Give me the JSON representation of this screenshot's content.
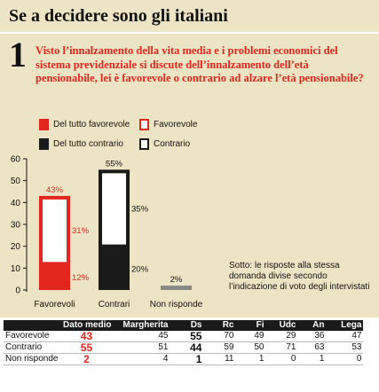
{
  "header": {
    "title": "Se a decidere sono gli italiani"
  },
  "question": {
    "number": "1",
    "text": "Visto l’innalzamento della vita media e i problemi economici del sistema previdenziale si discute dell’innalzamento dell’età pensionabile, lei è favorevole o contrario ad alzare l’età pensionabile?"
  },
  "legend": [
    {
      "label": "Del tutto favorevole",
      "color": "#e3261d",
      "style": "filled"
    },
    {
      "label": "Favorevole",
      "color": "#e3261d",
      "style": "outline"
    },
    {
      "label": "Del tutto contrario",
      "color": "#1a1a1a",
      "style": "filled"
    },
    {
      "label": "Contrario",
      "color": "#1a1a1a",
      "style": "outline"
    }
  ],
  "chart_data": {
    "type": "bar",
    "stacked": true,
    "categories": [
      "Favorevoli",
      "Contrari",
      "Non risponde"
    ],
    "totals": [
      "43%",
      "55%",
      "2%"
    ],
    "series": [
      {
        "name": "Del tutto favorevole",
        "values": [
          12,
          0,
          0
        ],
        "labels": [
          "12%",
          "",
          ""
        ],
        "color": "#e3261d"
      },
      {
        "name": "Favorevole",
        "values": [
          31,
          0,
          0
        ],
        "labels": [
          "31%",
          "",
          ""
        ],
        "color": "#e3261d"
      },
      {
        "name": "Del tutto contrario",
        "values": [
          0,
          20,
          0
        ],
        "labels": [
          "",
          "20%",
          ""
        ],
        "color": "#1a1a1a"
      },
      {
        "name": "Contrario",
        "values": [
          0,
          35,
          0
        ],
        "labels": [
          "",
          "35%",
          ""
        ],
        "color": "#1a1a1a"
      },
      {
        "values": [
          0,
          0,
          2
        ],
        "labels": [
          "",
          "",
          ""
        ],
        "color": "#888888"
      }
    ],
    "yticks": [
      "0",
      "10",
      "20",
      "30",
      "40",
      "50",
      "60"
    ],
    "ylim": [
      0,
      60
    ],
    "grid": false
  },
  "note": "Sotto: le risposte alla stessa domanda divise secondo l’indicazione di voto degli intervistati",
  "table": {
    "headers": [
      "",
      "Dato medio",
      "Margherita",
      "Ds",
      "Rc",
      "Fi",
      "Udc",
      "An",
      "Lega"
    ],
    "rows": [
      [
        "Favorevole",
        "43",
        "45",
        "55",
        "70",
        "49",
        "29",
        "36",
        "47"
      ],
      [
        "Contrario",
        "55",
        "51",
        "44",
        "59",
        "50",
        "71",
        "63",
        "53"
      ],
      [
        "Non risponde",
        "2",
        "4",
        "1",
        "11",
        "1",
        "0",
        "1",
        "0"
      ]
    ]
  }
}
